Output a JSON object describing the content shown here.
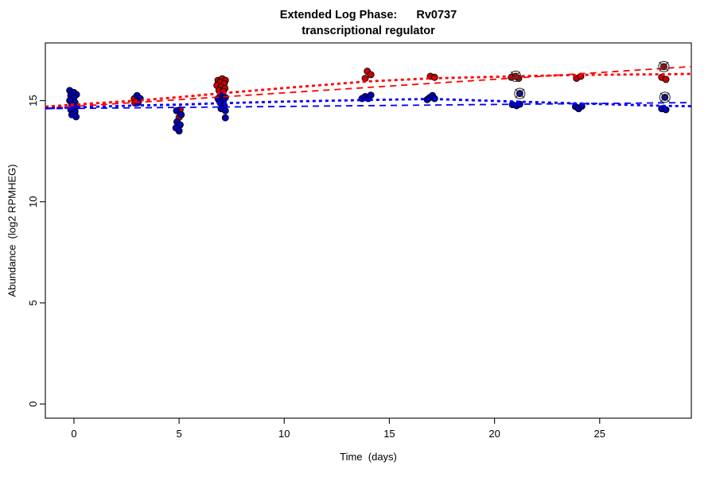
{
  "chart_data": {
    "type": "scatter",
    "title": "Extended Log Phase:      Rv0737",
    "subtitle": "transcriptional regulator",
    "xlabel": "Time  (days)",
    "ylabel": "Abundance  (log2 RPMHEG)",
    "xlim": [
      -1.36,
      29.36
    ],
    "ylim": [
      -0.7,
      17.85
    ],
    "x_ticks": [
      0,
      5,
      10,
      15,
      20,
      25
    ],
    "y_ticks": [
      0,
      5,
      10,
      15
    ],
    "grid": false,
    "legend": "none",
    "series": [
      {
        "name": "series-red",
        "point_color": "#CC0000",
        "points": [
          [
            2.87,
            15.1
          ],
          [
            3.05,
            15.0
          ],
          [
            2.9,
            14.88
          ],
          [
            5.05,
            14.55
          ],
          [
            5.0,
            14.17
          ],
          [
            6.85,
            16.0
          ],
          [
            7.05,
            16.08
          ],
          [
            7.2,
            16.0
          ],
          [
            6.95,
            15.9
          ],
          [
            7.15,
            15.85
          ],
          [
            6.8,
            15.75
          ],
          [
            7.0,
            15.67
          ],
          [
            7.18,
            15.6
          ],
          [
            6.9,
            15.5
          ],
          [
            7.1,
            15.45
          ],
          [
            6.88,
            15.05
          ],
          [
            13.95,
            16.45
          ],
          [
            14.12,
            16.28
          ],
          [
            13.85,
            16.1
          ],
          [
            16.95,
            16.2
          ],
          [
            17.15,
            16.15
          ],
          [
            20.8,
            16.15
          ],
          [
            21.15,
            16.1
          ],
          [
            23.9,
            16.1
          ],
          [
            24.1,
            16.2
          ],
          [
            27.95,
            16.15
          ],
          [
            28.15,
            16.05
          ]
        ]
      },
      {
        "name": "series-blue",
        "point_color": "#0000B8",
        "points": [
          [
            -0.2,
            15.5
          ],
          [
            0.0,
            15.4
          ],
          [
            0.12,
            15.3
          ],
          [
            -0.15,
            15.25
          ],
          [
            0.0,
            15.15
          ],
          [
            -0.2,
            15.0
          ],
          [
            0.05,
            14.9
          ],
          [
            -0.1,
            14.8
          ],
          [
            0.1,
            14.7
          ],
          [
            -0.15,
            14.55
          ],
          [
            0.05,
            14.45
          ],
          [
            -0.1,
            14.3
          ],
          [
            0.1,
            14.2
          ],
          [
            3.0,
            15.25
          ],
          [
            3.15,
            15.1
          ],
          [
            3.05,
            14.9
          ],
          [
            4.88,
            14.5
          ],
          [
            5.1,
            14.3
          ],
          [
            4.9,
            13.95
          ],
          [
            5.05,
            13.8
          ],
          [
            4.85,
            13.65
          ],
          [
            5.0,
            13.5
          ],
          [
            7.0,
            15.25
          ],
          [
            7.2,
            15.15
          ],
          [
            6.85,
            15.1
          ],
          [
            7.1,
            15.0
          ],
          [
            6.95,
            14.9
          ],
          [
            7.15,
            14.75
          ],
          [
            7.0,
            14.6
          ],
          [
            7.2,
            14.5
          ],
          [
            7.2,
            14.15
          ],
          [
            13.7,
            15.1
          ],
          [
            13.85,
            15.2
          ],
          [
            14.0,
            15.1
          ],
          [
            14.12,
            15.27
          ],
          [
            16.8,
            15.05
          ],
          [
            16.92,
            15.15
          ],
          [
            17.05,
            15.25
          ],
          [
            17.15,
            15.1
          ],
          [
            20.85,
            14.8
          ],
          [
            21.05,
            14.75
          ],
          [
            21.2,
            14.82
          ],
          [
            23.85,
            14.7
          ],
          [
            24.0,
            14.6
          ],
          [
            24.15,
            14.72
          ],
          [
            27.95,
            14.6
          ],
          [
            28.15,
            14.55
          ]
        ]
      }
    ],
    "flagged_points": [
      {
        "series": "series-red",
        "x": 21.0,
        "y": 16.2
      },
      {
        "series": "series-blue",
        "x": 21.2,
        "y": 15.35
      },
      {
        "series": "series-red",
        "x": 28.05,
        "y": 16.68
      },
      {
        "series": "series-blue",
        "x": 28.1,
        "y": 15.16
      }
    ],
    "fit_lines": [
      {
        "name": "red-linear-fit",
        "color": "#FF0000",
        "dash": "long",
        "points": [
          [
            -1.36,
            14.62
          ],
          [
            29.36,
            16.68
          ]
        ]
      },
      {
        "name": "red-smooth-fit",
        "color": "#FF0000",
        "dash": "short",
        "points": [
          [
            -1.36,
            14.7
          ],
          [
            0,
            14.8
          ],
          [
            3,
            15.0
          ],
          [
            5,
            15.17
          ],
          [
            7,
            15.36
          ],
          [
            10,
            15.62
          ],
          [
            14,
            15.95
          ],
          [
            17,
            16.1
          ],
          [
            21,
            16.2
          ],
          [
            24,
            16.27
          ],
          [
            28,
            16.3
          ],
          [
            29.36,
            16.32
          ]
        ]
      },
      {
        "name": "blue-linear-fit",
        "color": "#0000FF",
        "dash": "long",
        "points": [
          [
            -1.36,
            14.6
          ],
          [
            29.36,
            14.9
          ]
        ]
      },
      {
        "name": "blue-smooth-fit",
        "color": "#0000FF",
        "dash": "short",
        "points": [
          [
            -1.36,
            14.62
          ],
          [
            0,
            14.66
          ],
          [
            3,
            14.76
          ],
          [
            5,
            14.8
          ],
          [
            7,
            14.87
          ],
          [
            10,
            14.95
          ],
          [
            14,
            15.03
          ],
          [
            17,
            15.08
          ],
          [
            21,
            14.95
          ],
          [
            24,
            14.86
          ],
          [
            28,
            14.74
          ],
          [
            29.36,
            14.72
          ]
        ]
      }
    ]
  }
}
